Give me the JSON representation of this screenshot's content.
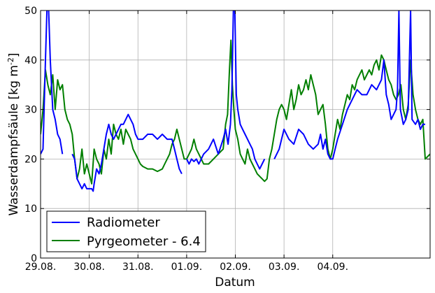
{
  "chart_data": {
    "type": "line",
    "xlabel": "Datum",
    "ylabel": "Wasserdampfsäule [kg m",
    "ylabel_sup": "-2",
    "ylabel_end": "]",
    "xlim": [
      0,
      8
    ],
    "ylim": [
      0,
      50
    ],
    "x_ticks": [
      {
        "v": 0,
        "label": "29.08."
      },
      {
        "v": 1,
        "label": "30.08."
      },
      {
        "v": 2,
        "label": "31.08."
      },
      {
        "v": 3,
        "label": "01.09."
      },
      {
        "v": 4,
        "label": "02.09."
      },
      {
        "v": 5,
        "label": "03.09."
      },
      {
        "v": 6,
        "label": "04.09."
      }
    ],
    "y_ticks": [
      {
        "v": 0,
        "label": "0"
      },
      {
        "v": 10,
        "label": "10"
      },
      {
        "v": 20,
        "label": "20"
      },
      {
        "v": 30,
        "label": "30"
      },
      {
        "v": 40,
        "label": "40"
      },
      {
        "v": 50,
        "label": "50"
      }
    ],
    "grid": true,
    "legend_position": "bottom-left",
    "series": [
      {
        "name": "Radiometer",
        "color": "#0000ff",
        "segments": [
          [
            [
              0.0,
              21
            ],
            [
              0.05,
              22
            ],
            [
              0.1,
              40
            ],
            [
              0.13,
              50
            ],
            [
              0.16,
              52
            ],
            [
              0.2,
              40
            ],
            [
              0.25,
              30
            ],
            [
              0.3,
              28
            ],
            [
              0.35,
              25
            ],
            [
              0.4,
              24
            ],
            [
              0.45,
              21
            ]
          ],
          [
            [
              0.65,
              21
            ],
            [
              0.7,
              20
            ],
            [
              0.75,
              16
            ],
            [
              0.8,
              15
            ],
            [
              0.85,
              14
            ],
            [
              0.9,
              15
            ],
            [
              0.95,
              14
            ],
            [
              1.0,
              14
            ],
            [
              1.05,
              14
            ],
            [
              1.08,
              13.5
            ],
            [
              1.1,
              15
            ],
            [
              1.15,
              18
            ],
            [
              1.2,
              17
            ],
            [
              1.25,
              19
            ],
            [
              1.3,
              22
            ],
            [
              1.35,
              25
            ],
            [
              1.4,
              27
            ],
            [
              1.45,
              25
            ],
            [
              1.5,
              24
            ],
            [
              1.55,
              25
            ],
            [
              1.6,
              26
            ],
            [
              1.65,
              27
            ],
            [
              1.7,
              27
            ],
            [
              1.75,
              28
            ],
            [
              1.8,
              29
            ],
            [
              1.85,
              28
            ],
            [
              1.9,
              27
            ],
            [
              1.95,
              25
            ],
            [
              2.0,
              24
            ],
            [
              2.1,
              24
            ],
            [
              2.2,
              25
            ],
            [
              2.3,
              25
            ],
            [
              2.4,
              24
            ],
            [
              2.5,
              25
            ],
            [
              2.6,
              24
            ],
            [
              2.7,
              24
            ],
            [
              2.75,
              22
            ],
            [
              2.8,
              20
            ],
            [
              2.85,
              18
            ],
            [
              2.9,
              17
            ]
          ],
          [
            [
              3.0,
              20
            ],
            [
              3.05,
              19
            ],
            [
              3.1,
              20
            ],
            [
              3.15,
              19.5
            ],
            [
              3.2,
              20
            ],
            [
              3.25,
              19
            ],
            [
              3.35,
              21
            ],
            [
              3.45,
              22
            ],
            [
              3.55,
              24
            ],
            [
              3.65,
              21
            ],
            [
              3.75,
              24
            ],
            [
              3.8,
              26
            ],
            [
              3.85,
              23
            ],
            [
              3.9,
              27
            ],
            [
              3.93,
              34
            ],
            [
              3.96,
              50
            ],
            [
              3.99,
              50
            ],
            [
              4.02,
              33
            ],
            [
              4.05,
              30
            ],
            [
              4.1,
              27
            ],
            [
              4.15,
              26
            ],
            [
              4.2,
              25
            ],
            [
              4.25,
              24
            ],
            [
              4.3,
              23
            ],
            [
              4.35,
              22
            ],
            [
              4.4,
              20
            ],
            [
              4.45,
              19
            ],
            [
              4.5,
              18
            ],
            [
              4.55,
              19
            ],
            [
              4.6,
              20
            ]
          ],
          [
            [
              4.8,
              20
            ],
            [
              4.85,
              21
            ],
            [
              4.9,
              22
            ],
            [
              4.95,
              24
            ],
            [
              5.0,
              26
            ],
            [
              5.1,
              24
            ],
            [
              5.2,
              23
            ],
            [
              5.3,
              26
            ],
            [
              5.4,
              25
            ],
            [
              5.5,
              23
            ],
            [
              5.6,
              22
            ],
            [
              5.7,
              23
            ],
            [
              5.75,
              25
            ],
            [
              5.8,
              22
            ],
            [
              5.85,
              24
            ],
            [
              5.9,
              21
            ],
            [
              5.95,
              20
            ],
            [
              6.0,
              20
            ],
            [
              6.05,
              22
            ],
            [
              6.1,
              24
            ],
            [
              6.2,
              27
            ],
            [
              6.3,
              30
            ],
            [
              6.4,
              32
            ],
            [
              6.5,
              34
            ],
            [
              6.6,
              33
            ],
            [
              6.7,
              33
            ],
            [
              6.8,
              35
            ],
            [
              6.9,
              34
            ],
            [
              7.0,
              36
            ],
            [
              7.05,
              40
            ],
            [
              7.1,
              33
            ],
            [
              7.15,
              31
            ],
            [
              7.2,
              28
            ],
            [
              7.25,
              29
            ],
            [
              7.3,
              30
            ],
            [
              7.33,
              34
            ],
            [
              7.36,
              50
            ],
            [
              7.39,
              30
            ],
            [
              7.45,
              27
            ],
            [
              7.5,
              28
            ],
            [
              7.55,
              30
            ],
            [
              7.6,
              50
            ],
            [
              7.63,
              28
            ],
            [
              7.7,
              27
            ],
            [
              7.75,
              28
            ],
            [
              7.8,
              26
            ],
            [
              7.85,
              27
            ],
            [
              7.9,
              27
            ]
          ]
        ]
      },
      {
        "name": "Pyrgeometer - 6.4",
        "color": "#007f00",
        "segments": [
          [
            [
              0.0,
              25
            ],
            [
              0.05,
              30
            ],
            [
              0.1,
              38
            ],
            [
              0.15,
              35
            ],
            [
              0.2,
              33
            ],
            [
              0.25,
              37
            ],
            [
              0.3,
              30
            ],
            [
              0.35,
              36
            ],
            [
              0.4,
              34
            ],
            [
              0.45,
              35
            ],
            [
              0.5,
              30
            ],
            [
              0.55,
              28
            ],
            [
              0.6,
              27
            ],
            [
              0.65,
              25
            ],
            [
              0.7,
              20
            ],
            [
              0.75,
              16
            ],
            [
              0.8,
              18
            ],
            [
              0.85,
              22
            ],
            [
              0.9,
              17
            ],
            [
              0.95,
              19
            ],
            [
              1.0,
              17
            ],
            [
              1.05,
              15
            ],
            [
              1.1,
              22
            ],
            [
              1.15,
              20
            ],
            [
              1.2,
              19
            ],
            [
              1.25,
              17
            ],
            [
              1.3,
              22
            ],
            [
              1.35,
              20
            ],
            [
              1.4,
              24
            ],
            [
              1.45,
              21
            ],
            [
              1.5,
              27
            ],
            [
              1.55,
              25
            ],
            [
              1.6,
              24
            ],
            [
              1.65,
              26
            ],
            [
              1.7,
              23
            ],
            [
              1.75,
              26
            ],
            [
              1.8,
              25
            ],
            [
              1.85,
              24
            ],
            [
              1.9,
              22
            ],
            [
              1.95,
              21
            ],
            [
              2.0,
              20
            ],
            [
              2.05,
              19
            ],
            [
              2.1,
              18.5
            ],
            [
              2.2,
              18
            ],
            [
              2.3,
              18
            ],
            [
              2.4,
              17.5
            ],
            [
              2.5,
              18
            ],
            [
              2.55,
              19
            ],
            [
              2.6,
              20
            ],
            [
              2.65,
              21
            ],
            [
              2.7,
              23
            ],
            [
              2.75,
              24
            ],
            [
              2.8,
              26
            ],
            [
              2.85,
              24
            ],
            [
              2.9,
              22
            ],
            [
              2.95,
              20
            ],
            [
              3.0,
              20
            ],
            [
              3.05,
              21
            ],
            [
              3.1,
              22
            ],
            [
              3.15,
              24
            ],
            [
              3.2,
              22
            ],
            [
              3.25,
              21
            ],
            [
              3.3,
              20
            ],
            [
              3.35,
              19
            ],
            [
              3.45,
              19
            ],
            [
              3.55,
              20
            ],
            [
              3.65,
              21
            ],
            [
              3.75,
              22
            ],
            [
              3.8,
              27
            ],
            [
              3.84,
              29
            ],
            [
              3.88,
              38
            ],
            [
              3.91,
              44
            ],
            [
              3.94,
              35
            ],
            [
              3.97,
              30
            ],
            [
              4.0,
              26
            ],
            [
              4.05,
              24
            ],
            [
              4.1,
              21
            ],
            [
              4.15,
              20
            ],
            [
              4.2,
              19
            ],
            [
              4.25,
              22
            ],
            [
              4.3,
              20
            ],
            [
              4.35,
              19
            ],
            [
              4.4,
              18
            ],
            [
              4.45,
              17
            ],
            [
              4.5,
              16.5
            ],
            [
              4.55,
              16
            ],
            [
              4.6,
              15.5
            ],
            [
              4.65,
              16
            ],
            [
              4.7,
              20
            ],
            [
              4.75,
              22
            ],
            [
              4.8,
              25
            ],
            [
              4.85,
              28
            ],
            [
              4.9,
              30
            ],
            [
              4.95,
              31
            ],
            [
              5.0,
              30
            ],
            [
              5.05,
              28
            ],
            [
              5.1,
              31
            ],
            [
              5.15,
              34
            ],
            [
              5.2,
              30
            ],
            [
              5.25,
              32
            ],
            [
              5.3,
              35
            ],
            [
              5.35,
              33
            ],
            [
              5.4,
              34
            ],
            [
              5.45,
              36
            ],
            [
              5.5,
              34
            ],
            [
              5.55,
              37
            ],
            [
              5.6,
              35
            ],
            [
              5.65,
              33
            ],
            [
              5.7,
              29
            ],
            [
              5.75,
              30
            ],
            [
              5.8,
              31
            ],
            [
              5.85,
              27
            ],
            [
              5.9,
              22
            ],
            [
              5.95,
              20
            ],
            [
              6.0,
              22
            ],
            [
              6.05,
              25
            ],
            [
              6.1,
              28
            ],
            [
              6.15,
              26
            ],
            [
              6.2,
              29
            ],
            [
              6.25,
              31
            ],
            [
              6.3,
              33
            ],
            [
              6.35,
              32
            ],
            [
              6.4,
              35
            ],
            [
              6.45,
              34
            ],
            [
              6.5,
              36
            ],
            [
              6.55,
              37
            ],
            [
              6.6,
              38
            ],
            [
              6.65,
              36
            ],
            [
              6.7,
              37
            ],
            [
              6.75,
              38
            ],
            [
              6.8,
              37
            ],
            [
              6.85,
              39
            ],
            [
              6.9,
              40
            ],
            [
              6.95,
              38
            ],
            [
              7.0,
              41
            ],
            [
              7.05,
              40
            ],
            [
              7.1,
              38
            ],
            [
              7.15,
              36
            ],
            [
              7.2,
              35
            ],
            [
              7.25,
              33
            ],
            [
              7.3,
              32
            ],
            [
              7.35,
              33
            ],
            [
              7.4,
              35
            ],
            [
              7.45,
              30
            ],
            [
              7.5,
              28
            ],
            [
              7.55,
              31
            ],
            [
              7.6,
              40
            ],
            [
              7.65,
              33
            ],
            [
              7.7,
              30
            ],
            [
              7.75,
              28
            ],
            [
              7.8,
              27
            ],
            [
              7.85,
              28
            ],
            [
              7.9,
              20
            ],
            [
              8.0,
              21
            ]
          ]
        ]
      }
    ]
  }
}
